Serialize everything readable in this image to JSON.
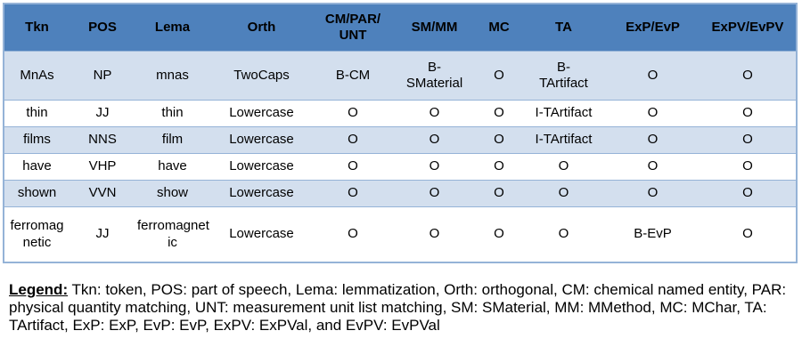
{
  "colors": {
    "header_bg": "#4e81bc",
    "row_alt_bg": "#d3dfee",
    "border": "#95b3d7",
    "text": "#000000"
  },
  "table": {
    "headers": [
      "Tkn",
      "POS",
      "Lema",
      "Orth",
      "CM/PAR/\nUNT",
      "SM/MM",
      "MC",
      "TA",
      "ExP/EvP",
      "ExPV/EvPV"
    ],
    "rows": [
      {
        "shaded": true,
        "cells": [
          "MnAs",
          "NP",
          "mnas",
          "TwoCaps",
          "B-CM",
          "B-\nSMaterial",
          "O",
          "B-\nTArtifact",
          "O",
          "O"
        ]
      },
      {
        "shaded": false,
        "cells": [
          "thin",
          "JJ",
          "thin",
          "Lowercase",
          "O",
          "O",
          "O",
          "I-TArtifact",
          "O",
          "O"
        ]
      },
      {
        "shaded": true,
        "cells": [
          "films",
          "NNS",
          "film",
          "Lowercase",
          "O",
          "O",
          "O",
          "I-TArtifact",
          "O",
          "O"
        ]
      },
      {
        "shaded": false,
        "cells": [
          "have",
          "VHP",
          "have",
          "Lowercase",
          "O",
          "O",
          "O",
          "O",
          "O",
          "O"
        ]
      },
      {
        "shaded": true,
        "cells": [
          "shown",
          "VVN",
          "show",
          "Lowercase",
          "O",
          "O",
          "O",
          "O",
          "O",
          "O"
        ]
      },
      {
        "shaded": false,
        "cells": [
          "ferromag\nnetic",
          "JJ",
          "ferromagnet\nic",
          "Lowercase",
          "O",
          "O",
          "O",
          "O",
          "B-EvP",
          "O"
        ]
      }
    ]
  },
  "legend": {
    "label": "Legend:",
    "text": "Tkn: token, POS: part of speech, Lema: lemmatization, Orth: orthogonal, CM: chemical named entity, PAR: physical quantity matching, UNT: measurement unit list matching, SM: SMaterial, MM: MMethod, MC: MChar, TA: TArtifact, ExP: ExP, EvP: EvP, ExPV: ExPVal, and EvPV: EvPVal"
  }
}
